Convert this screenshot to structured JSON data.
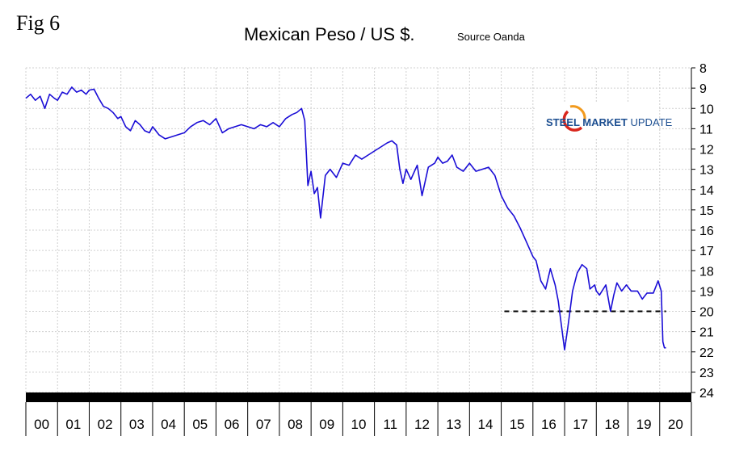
{
  "figure_label": "Fig 6",
  "source": "Source Oanda",
  "logo_text": {
    "bold_part": "STEEL MARKET",
    "light_part": " UPDATE"
  },
  "colors": {
    "series": "#1a0dd6",
    "reference_line": "#000000",
    "grid": "#d0d0d0",
    "axis_band": "#000000",
    "logo_red": "#d9261c",
    "logo_orange": "#f29a1d",
    "logo_blue": "#1d4f91"
  },
  "chart_data": {
    "type": "line",
    "title": "Mexican Peso / US $.",
    "y_axis_inverted": true,
    "ylim": [
      8,
      24
    ],
    "y_ticks": [
      8,
      9,
      10,
      11,
      12,
      13,
      14,
      15,
      16,
      17,
      18,
      19,
      20,
      21,
      22,
      23,
      24
    ],
    "y_axis_position": "right",
    "x_categories": [
      "00",
      "01",
      "02",
      "03",
      "04",
      "05",
      "06",
      "07",
      "08",
      "09",
      "10",
      "11",
      "12",
      "13",
      "14",
      "15",
      "16",
      "17",
      "18",
      "19",
      "20"
    ],
    "grid": true,
    "reference_line": {
      "value": 20,
      "style": "dashed",
      "x_start": 2015.1,
      "x_end": 2020.2
    },
    "series": [
      {
        "x": [
          2000.0,
          2000.15,
          2000.3,
          2000.45,
          2000.6,
          2000.75,
          2000.9,
          2001.0,
          2001.15,
          2001.3,
          2001.45,
          2001.6,
          2001.75,
          2001.9,
          2002.0,
          2002.15,
          2002.3,
          2002.45,
          2002.6,
          2002.75,
          2002.9,
          2003.0,
          2003.15,
          2003.3,
          2003.45,
          2003.6,
          2003.75,
          2003.9,
          2004.0,
          2004.2,
          2004.4,
          2004.6,
          2004.8,
          2005.0,
          2005.2,
          2005.4,
          2005.6,
          2005.8,
          2006.0,
          2006.2,
          2006.4,
          2006.6,
          2006.8,
          2007.0,
          2007.2,
          2007.4,
          2007.6,
          2007.8,
          2008.0,
          2008.2,
          2008.4,
          2008.55,
          2008.7,
          2008.8,
          2008.9,
          2009.0,
          2009.1,
          2009.2,
          2009.3,
          2009.45,
          2009.6,
          2009.8,
          2010.0,
          2010.2,
          2010.4,
          2010.6,
          2010.8,
          2011.0,
          2011.2,
          2011.4,
          2011.55,
          2011.7,
          2011.8,
          2011.9,
          2012.0,
          2012.15,
          2012.35,
          2012.5,
          2012.7,
          2012.9,
          2013.0,
          2013.15,
          2013.3,
          2013.45,
          2013.6,
          2013.8,
          2014.0,
          2014.2,
          2014.4,
          2014.6,
          2014.8,
          2015.0,
          2015.2,
          2015.4,
          2015.6,
          2015.8,
          2016.0,
          2016.1,
          2016.25,
          2016.4,
          2016.55,
          2016.7,
          2016.8,
          2016.9,
          2017.0,
          2017.1,
          2017.25,
          2017.4,
          2017.55,
          2017.7,
          2017.8,
          2017.95,
          2018.0,
          2018.1,
          2018.3,
          2018.45,
          2018.55,
          2018.65,
          2018.8,
          2018.95,
          2019.1,
          2019.3,
          2019.45,
          2019.6,
          2019.8,
          2019.95,
          2020.05,
          2020.1,
          2020.15,
          2020.2
        ],
        "values": [
          9.5,
          9.3,
          9.6,
          9.4,
          10.0,
          9.3,
          9.5,
          9.6,
          9.2,
          9.3,
          8.95,
          9.2,
          9.1,
          9.3,
          9.1,
          9.05,
          9.5,
          9.9,
          10.0,
          10.2,
          10.5,
          10.4,
          10.9,
          11.1,
          10.6,
          10.8,
          11.1,
          11.2,
          10.9,
          11.3,
          11.5,
          11.4,
          11.3,
          11.2,
          10.9,
          10.7,
          10.6,
          10.8,
          10.5,
          11.2,
          11.0,
          10.9,
          10.8,
          10.9,
          11.0,
          10.8,
          10.9,
          10.7,
          10.9,
          10.5,
          10.3,
          10.2,
          10.0,
          10.6,
          13.8,
          13.1,
          14.2,
          13.9,
          15.4,
          13.3,
          13.0,
          13.4,
          12.7,
          12.8,
          12.3,
          12.5,
          12.3,
          12.1,
          11.9,
          11.7,
          11.6,
          11.8,
          13.0,
          13.7,
          13.0,
          13.5,
          12.8,
          14.3,
          12.9,
          12.7,
          12.4,
          12.7,
          12.6,
          12.3,
          12.9,
          13.1,
          12.7,
          13.1,
          13.0,
          12.9,
          13.3,
          14.3,
          14.9,
          15.3,
          15.9,
          16.6,
          17.3,
          17.5,
          18.5,
          18.9,
          17.9,
          18.7,
          19.5,
          20.7,
          21.9,
          20.8,
          19.0,
          18.1,
          17.7,
          17.9,
          18.9,
          18.7,
          19.0,
          19.2,
          18.7,
          20.0,
          19.2,
          18.6,
          19.0,
          18.7,
          19.0,
          19.0,
          19.4,
          19.1,
          19.1,
          18.5,
          19.0,
          21.5,
          21.8,
          21.8
        ]
      }
    ]
  }
}
